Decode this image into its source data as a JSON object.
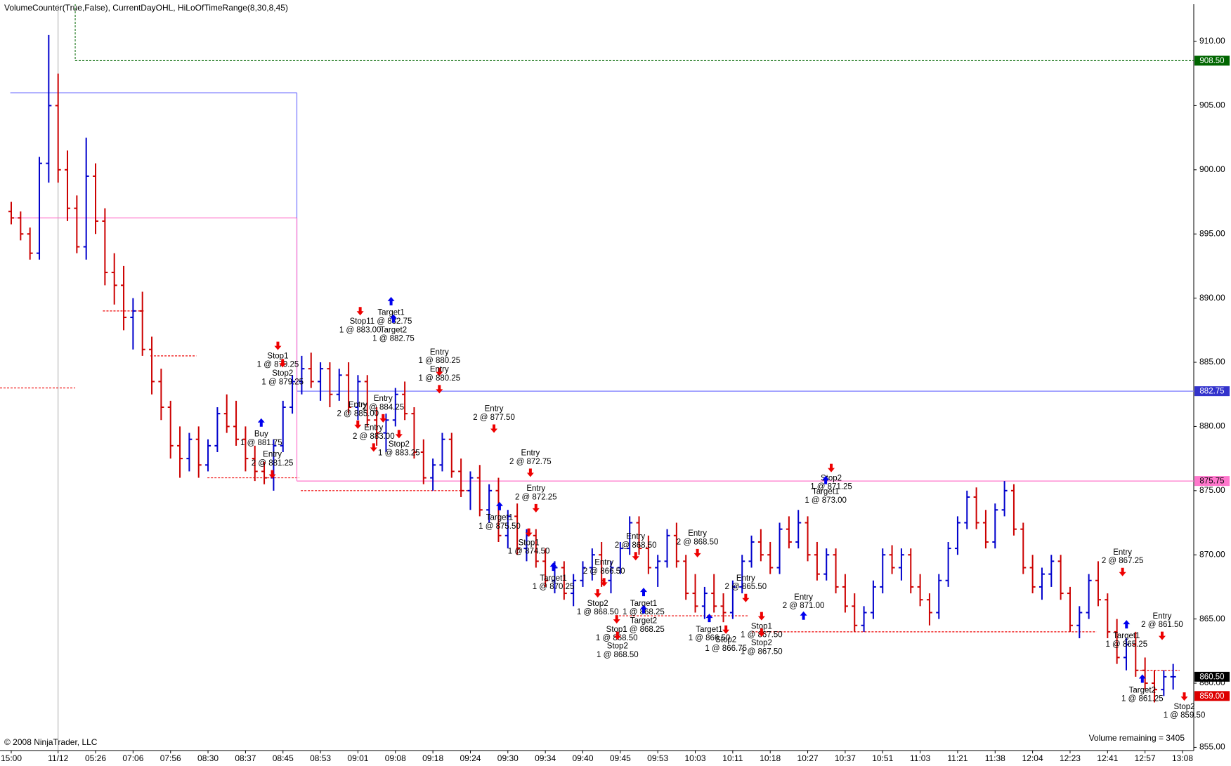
{
  "chart_data": {
    "type": "ohlc",
    "title": "VolumeCounter(True,False), CurrentDayOHL, HiLoOfTimeRange(8,30,8,45)",
    "footer_left": "© 2008 NinjaTrader, LLC",
    "footer_right": "Volume remaining = 3405",
    "up_color": "#0000cc",
    "down_color": "#cc0000",
    "xlim": [
      -1.2,
      126.2
    ],
    "ylim": [
      854.75,
      912.9
    ],
    "xticks": [
      {
        "value": 0,
        "label": "15:00"
      },
      {
        "value": 5,
        "label": "11/12"
      },
      {
        "value": 9,
        "label": "05:26"
      },
      {
        "value": 13,
        "label": "07:06"
      },
      {
        "value": 17,
        "label": "07:56"
      },
      {
        "value": 21,
        "label": "08:30"
      },
      {
        "value": 25,
        "label": "08:37"
      },
      {
        "value": 29,
        "label": "08:45"
      },
      {
        "value": 33,
        "label": "08:53"
      },
      {
        "value": 37,
        "label": "09:01"
      },
      {
        "value": 41,
        "label": "09:08"
      },
      {
        "value": 45,
        "label": "09:18"
      },
      {
        "value": 49,
        "label": "09:24"
      },
      {
        "value": 53,
        "label": "09:30"
      },
      {
        "value": 57,
        "label": "09:34"
      },
      {
        "value": 61,
        "label": "09:40"
      },
      {
        "value": 65,
        "label": "09:45"
      },
      {
        "value": 69,
        "label": "09:53"
      },
      {
        "value": 73,
        "label": "10:03"
      },
      {
        "value": 77,
        "label": "10:11"
      },
      {
        "value": 81,
        "label": "10:18"
      },
      {
        "value": 85,
        "label": "10:27"
      },
      {
        "value": 89,
        "label": "10:37"
      },
      {
        "value": 93,
        "label": "10:51"
      },
      {
        "value": 97,
        "label": "11:03"
      },
      {
        "value": 101,
        "label": "11:21"
      },
      {
        "value": 105,
        "label": "11:38"
      },
      {
        "value": 109,
        "label": "12:04"
      },
      {
        "value": 113,
        "label": "12:23"
      },
      {
        "value": 117,
        "label": "12:41"
      },
      {
        "value": 121,
        "label": "12:57"
      },
      {
        "value": 125,
        "label": "13:08"
      }
    ],
    "yticks": [
      {
        "value": 855,
        "label": "855.00"
      },
      {
        "value": 860,
        "label": "860.00"
      },
      {
        "value": 865,
        "label": "865.00"
      },
      {
        "value": 870,
        "label": "870.00"
      },
      {
        "value": 875,
        "label": "875.00"
      },
      {
        "value": 880,
        "label": "880.00"
      },
      {
        "value": 885,
        "label": "885.00"
      },
      {
        "value": 890,
        "label": "890.00"
      },
      {
        "value": 895,
        "label": "895.00"
      },
      {
        "value": 900,
        "label": "900.00"
      },
      {
        "value": 905,
        "label": "905.00"
      },
      {
        "value": 910,
        "label": "910.00"
      }
    ],
    "bars": [
      [
        896.75,
        897.5,
        895.75,
        896.25
      ],
      [
        896.25,
        896.75,
        894.5,
        895
      ],
      [
        895,
        895.5,
        893,
        893.5
      ],
      [
        893.5,
        901,
        893,
        900.5
      ],
      [
        900.5,
        910.5,
        899,
        905
      ],
      [
        905,
        907.5,
        899,
        900
      ],
      [
        900,
        901.5,
        896,
        897
      ],
      [
        897,
        898,
        893.5,
        894
      ],
      [
        894,
        902.5,
        893,
        899.5
      ],
      [
        899.5,
        900.5,
        895,
        896
      ],
      [
        896,
        897,
        891,
        892
      ],
      [
        892,
        893.5,
        889.5,
        891
      ],
      [
        891,
        892.5,
        887.5,
        888.5
      ],
      [
        888.5,
        890,
        886,
        889
      ],
      [
        889,
        890.5,
        885.5,
        886
      ],
      [
        886,
        887,
        882.5,
        883.5
      ],
      [
        883.5,
        884.5,
        880.5,
        881.5
      ],
      [
        881.5,
        882,
        877.5,
        878.5
      ],
      [
        878.5,
        880,
        876,
        877.5
      ],
      [
        877.5,
        879.5,
        876.5,
        879
      ],
      [
        879,
        880,
        876,
        877
      ],
      [
        877,
        879,
        876.5,
        878.5
      ],
      [
        878.5,
        881.5,
        878,
        881
      ],
      [
        881,
        882.5,
        879.5,
        880
      ],
      [
        880,
        882,
        878.5,
        879
      ],
      [
        879,
        880,
        876.5,
        877.5
      ],
      [
        877.5,
        878.5,
        875.75,
        876.5
      ],
      [
        876.5,
        877.25,
        875.5,
        876
      ],
      [
        876,
        879,
        875,
        878.5
      ],
      [
        878.5,
        882,
        878,
        881.5
      ],
      [
        881.5,
        884,
        881,
        883.5
      ],
      [
        883.5,
        885.5,
        882.5,
        884.5
      ],
      [
        884.5,
        885.75,
        883,
        883.5
      ],
      [
        883.5,
        885,
        882,
        884.5
      ],
      [
        884.5,
        885,
        881.5,
        882.5
      ],
      [
        882.5,
        884.5,
        882,
        884
      ],
      [
        884,
        885,
        881,
        881.5
      ],
      [
        881.5,
        884,
        880.5,
        883.5
      ],
      [
        883.5,
        884,
        880,
        880.5
      ],
      [
        880.5,
        881.5,
        878.5,
        879.5
      ],
      [
        879.5,
        881,
        878,
        880.5
      ],
      [
        880.5,
        883,
        880,
        882.5
      ],
      [
        882.5,
        883.5,
        880.5,
        881
      ],
      [
        881,
        881.5,
        877.5,
        878
      ],
      [
        878,
        879,
        875.5,
        876
      ],
      [
        876,
        877.5,
        875,
        877
      ],
      [
        877,
        879.5,
        876.5,
        879
      ],
      [
        879,
        879.5,
        876,
        876.5
      ],
      [
        876.5,
        877.5,
        874.5,
        875
      ],
      [
        875,
        876.5,
        873.5,
        876
      ],
      [
        876,
        877,
        873,
        873.5
      ],
      [
        873.5,
        875.5,
        872.5,
        875
      ],
      [
        875,
        876,
        871,
        871.5
      ],
      [
        871.5,
        873.5,
        870.5,
        873
      ],
      [
        873,
        874,
        870,
        870.5
      ],
      [
        870.5,
        872,
        869.5,
        871.5
      ],
      [
        871.5,
        872,
        869,
        869.5
      ],
      [
        869.5,
        870.5,
        867.5,
        868
      ],
      [
        868,
        869.5,
        867,
        869
      ],
      [
        869,
        869.5,
        866.5,
        867
      ],
      [
        867,
        868.5,
        866,
        868
      ],
      [
        868,
        869.5,
        867.5,
        869
      ],
      [
        869,
        870.5,
        868,
        870
      ],
      [
        870,
        871,
        867.5,
        868
      ],
      [
        868,
        869.5,
        867,
        869
      ],
      [
        869,
        871,
        868.5,
        870.5
      ],
      [
        870.5,
        873,
        870,
        872.5
      ],
      [
        872.5,
        873,
        870,
        870.5
      ],
      [
        870.5,
        871.5,
        868.5,
        869
      ],
      [
        869,
        870,
        867.5,
        869.5
      ],
      [
        869.5,
        872,
        869,
        871.5
      ],
      [
        871.5,
        872.5,
        869,
        869.5
      ],
      [
        869.5,
        870,
        866.5,
        867
      ],
      [
        867,
        868.5,
        865.5,
        866
      ],
      [
        866,
        867.5,
        865,
        867
      ],
      [
        867,
        868.5,
        865.5,
        866
      ],
      [
        866,
        867,
        864.75,
        865.5
      ],
      [
        865.5,
        868,
        865,
        867.5
      ],
      [
        867.5,
        870,
        867,
        869.5
      ],
      [
        869.5,
        871.5,
        869,
        871
      ],
      [
        871,
        872,
        869.5,
        870
      ],
      [
        870,
        871,
        868.5,
        869
      ],
      [
        869,
        872.5,
        868.5,
        872
      ],
      [
        872,
        873,
        870.5,
        871
      ],
      [
        871,
        873.5,
        870.5,
        872.5
      ],
      [
        872.5,
        873,
        869.5,
        870
      ],
      [
        870,
        871,
        868,
        868.5
      ],
      [
        868.5,
        870.5,
        868,
        870
      ],
      [
        870,
        870.5,
        867,
        867.5
      ],
      [
        867.5,
        868.5,
        865.5,
        866
      ],
      [
        866,
        867,
        864,
        864.5
      ],
      [
        864.5,
        866,
        864,
        865.5
      ],
      [
        865.5,
        868,
        865,
        867.5
      ],
      [
        867.5,
        870.5,
        867,
        870
      ],
      [
        870,
        870.75,
        868.5,
        869
      ],
      [
        869,
        870.5,
        868,
        870
      ],
      [
        870,
        870.5,
        867,
        867.5
      ],
      [
        867.5,
        868.5,
        866,
        866.5
      ],
      [
        866.5,
        867,
        864.5,
        865.5
      ],
      [
        865.5,
        868.5,
        865,
        868
      ],
      [
        868,
        871,
        867.5,
        870.5
      ],
      [
        870.5,
        873,
        870,
        872.5
      ],
      [
        872.5,
        875,
        872,
        874.5
      ],
      [
        874.5,
        875.25,
        872,
        872.5
      ],
      [
        872.5,
        873.5,
        870.5,
        871
      ],
      [
        871,
        874,
        870.5,
        873.5
      ],
      [
        873.5,
        875.75,
        873,
        875
      ],
      [
        875,
        875.5,
        871.5,
        872
      ],
      [
        872,
        872.5,
        868.5,
        869
      ],
      [
        869,
        870,
        867,
        867.5
      ],
      [
        867.5,
        869,
        866.5,
        868.5
      ],
      [
        868.5,
        870,
        867.5,
        869.5
      ],
      [
        869.5,
        870,
        866.5,
        867
      ],
      [
        867,
        867.5,
        864,
        864.5
      ],
      [
        864.5,
        866,
        863.5,
        865.5
      ],
      [
        865.5,
        868.5,
        865,
        868
      ],
      [
        868,
        869.5,
        866,
        866.5
      ],
      [
        866.5,
        867,
        863.5,
        864
      ],
      [
        864,
        865,
        861.5,
        862
      ],
      [
        862,
        863.5,
        861,
        863
      ],
      [
        863,
        864,
        860.5,
        861
      ],
      [
        861,
        862,
        859.5,
        860
      ],
      [
        860,
        861,
        858.5,
        859.5
      ],
      [
        859.5,
        861,
        859,
        860.5
      ],
      [
        860.5,
        861.5,
        859.5,
        860.5
      ]
    ],
    "levels": [
      {
        "value": 908.5,
        "color": "#006600"
      },
      {
        "value": 906,
        "color": "#7777ff"
      },
      {
        "value": 882.75,
        "color": "#7777ff"
      },
      {
        "value": 896.25,
        "color": "#ff77cc"
      },
      {
        "value": 875.75,
        "color": "#ff77cc"
      },
      {
        "value": 883,
        "color": "#ee0000"
      },
      {
        "value": 889,
        "color": "#ee0000"
      },
      {
        "value": 885.5,
        "color": "#ee0000"
      },
      {
        "value": 876,
        "color": "#ee0000"
      },
      {
        "value": 875,
        "color": "#ee0000"
      },
      {
        "value": 865.25,
        "color": "#ee0000"
      },
      {
        "value": 864,
        "color": "#ee0000"
      },
      {
        "value": 861,
        "color": "#ee0000"
      }
    ],
    "price_markers": [
      {
        "value": 908.5,
        "label": "908.50",
        "color": "#006600"
      },
      {
        "value": 882.75,
        "label": "882.75",
        "color": "#3333cc"
      },
      {
        "value": 875.75,
        "label": "875.75",
        "color": "#ff77cc"
      },
      {
        "value": 860.5,
        "label": "860.50",
        "color": "#000000"
      },
      {
        "value": 859,
        "label": "859.00",
        "color": "#dd0000"
      }
    ],
    "annotations": [
      {
        "label": "Stop1",
        "detail": "1 @ 879.25"
      },
      {
        "label": "Stop2",
        "detail": "1 @ 879.25"
      },
      {
        "label": "Buy",
        "detail": "1 @ 881.75"
      },
      {
        "label": "Entry",
        "detail": "2 @ 881.25"
      },
      {
        "label": "Target1",
        "detail": "1 @ 882.75"
      },
      {
        "label": "Stop1",
        "detail": "1 @ 883.00"
      },
      {
        "label": "Target2",
        "detail": "1 @ 882.75"
      },
      {
        "label": "Entry",
        "detail": "2 @ 885.00"
      },
      {
        "label": "Entry",
        "detail": "2 @ 884.25"
      },
      {
        "label": "Entry",
        "detail": "2 @ 883.00"
      },
      {
        "label": "Stop2",
        "detail": "1 @ 883.25"
      },
      {
        "label": "Entry",
        "detail": "1 @ 880.25"
      },
      {
        "label": "Entry",
        "detail": "1 @ 880.25"
      },
      {
        "label": "Entry",
        "detail": "2 @ 877.50"
      },
      {
        "label": "Entry",
        "detail": "2 @ 872.75"
      },
      {
        "label": "Entry",
        "detail": "2 @ 872.25"
      },
      {
        "label": "Target1",
        "detail": "1 @ 875.50"
      },
      {
        "label": "Stop1",
        "detail": "1 @ 874.50"
      },
      {
        "label": "Target1",
        "detail": "1 @ 870.25"
      },
      {
        "label": "Entry",
        "detail": "2 @ 866.50"
      },
      {
        "label": "Stop2",
        "detail": "1 @ 868.50"
      },
      {
        "label": "Target1",
        "detail": "1 @ 868.25"
      },
      {
        "label": "Target2",
        "detail": "1 @ 868.25"
      },
      {
        "label": "Stop1",
        "detail": "1 @ 868.50"
      },
      {
        "label": "Stop2",
        "detail": "1 @ 868.50"
      },
      {
        "label": "Entry",
        "detail": "2 @ 868.50"
      },
      {
        "label": "Entry",
        "detail": "2 @ 868.50"
      },
      {
        "label": "Target1",
        "detail": "1 @ 866.50"
      },
      {
        "label": "Stop2",
        "detail": "1 @ 866.75"
      },
      {
        "label": "Entry",
        "detail": "2 @ 865.50"
      },
      {
        "label": "Stop1",
        "detail": "1 @ 867.50"
      },
      {
        "label": "Stop2",
        "detail": "1 @ 867.50"
      },
      {
        "label": "Entry",
        "detail": "2 @ 871.00"
      },
      {
        "label": "Stop2",
        "detail": "1 @ 871.25"
      },
      {
        "label": "Target1",
        "detail": "1 @ 873.00"
      },
      {
        "label": "Entry",
        "detail": "2 @ 867.25"
      },
      {
        "label": "Target1",
        "detail": "1 @ 865.25"
      },
      {
        "label": "Entry",
        "detail": "2 @ 861.50"
      },
      {
        "label": "Target2",
        "detail": "1 @ 861.25"
      },
      {
        "label": "Stop2",
        "detail": "1 @ 859.50"
      }
    ]
  }
}
